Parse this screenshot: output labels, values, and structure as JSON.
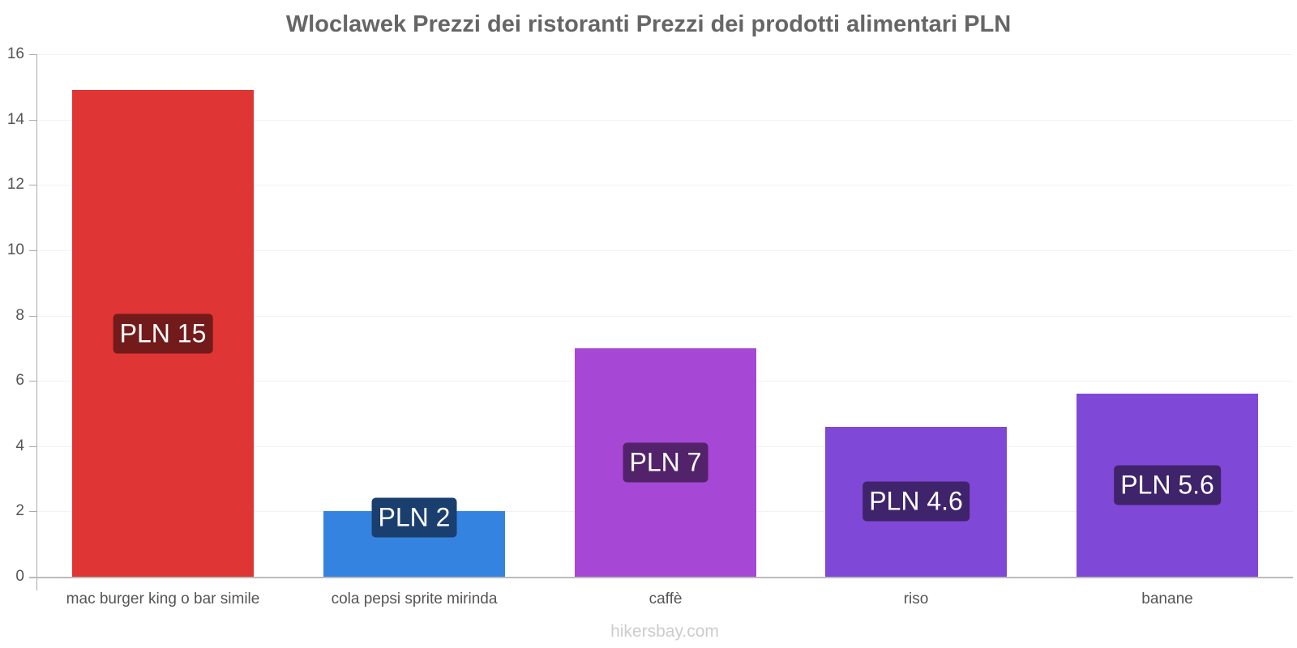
{
  "title": "Wloclawek Prezzi dei ristoranti Prezzi dei prodotti alimentari PLN",
  "footer": "hikersbay.com",
  "y_ticks": [
    "0",
    "2",
    "4",
    "6",
    "8",
    "10",
    "12",
    "14",
    "16"
  ],
  "bars": [
    {
      "category": "mac burger king o bar simile",
      "value": 14.9,
      "label": "PLN 15",
      "color": "#e03535",
      "label_bg": "#731a1a"
    },
    {
      "category": "cola pepsi sprite mirinda",
      "value": 2.0,
      "label": "PLN 2",
      "color": "#3583e0",
      "label_bg": "#1a3f6e"
    },
    {
      "category": "caffè",
      "value": 7.0,
      "label": "PLN 7",
      "color": "#a647d6",
      "label_bg": "#52236a"
    },
    {
      "category": "riso",
      "value": 4.6,
      "label": "PLN 4.6",
      "color": "#8048d6",
      "label_bg": "#3f236b"
    },
    {
      "category": "banane",
      "value": 5.6,
      "label": "PLN 5.6",
      "color": "#8048d6",
      "label_bg": "#3f236b"
    }
  ],
  "chart_data": {
    "type": "bar",
    "title": "Wloclawek Prezzi dei ristoranti Prezzi dei prodotti alimentari PLN",
    "categories": [
      "mac burger king o bar simile",
      "cola pepsi sprite mirinda",
      "caffè",
      "riso",
      "banane"
    ],
    "values": [
      14.9,
      2.0,
      7.0,
      4.6,
      5.6
    ],
    "data_labels": [
      "PLN 15",
      "PLN 2",
      "PLN 7",
      "PLN 4.6",
      "PLN 5.6"
    ],
    "xlabel": "",
    "ylabel": "",
    "ylim": [
      0,
      16
    ],
    "yticks": [
      0,
      2,
      4,
      6,
      8,
      10,
      12,
      14,
      16
    ],
    "grid": true,
    "legend": null,
    "colors": [
      "#e03535",
      "#3583e0",
      "#a647d6",
      "#8048d6",
      "#8048d6"
    ]
  }
}
